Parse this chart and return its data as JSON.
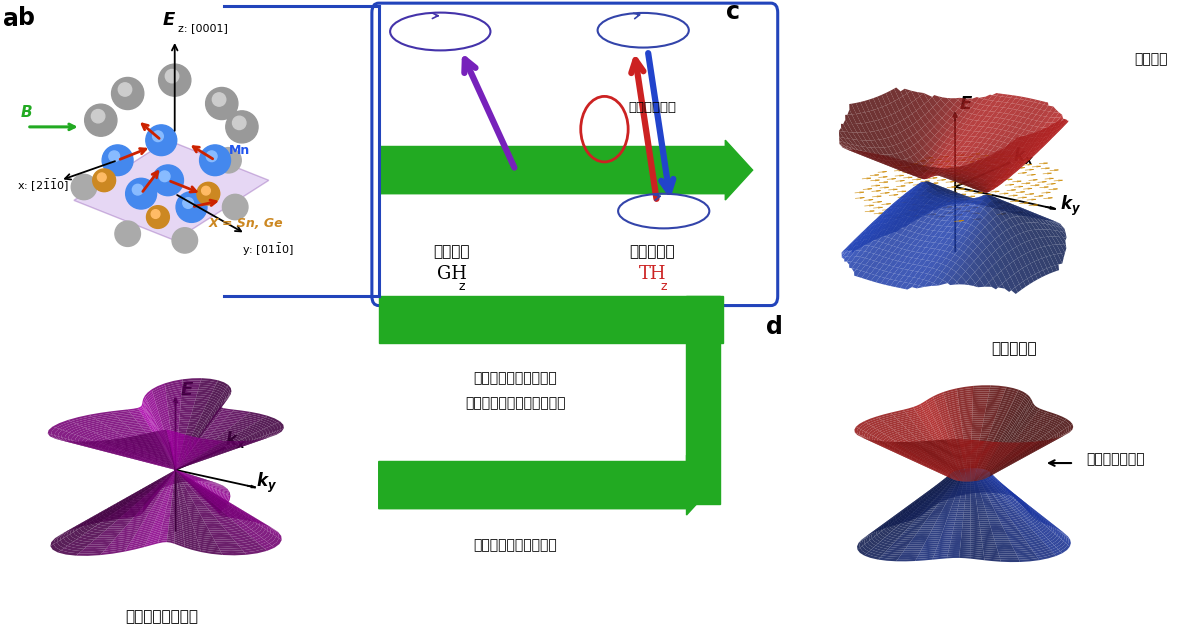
{
  "bg_color": "#ffffff",
  "panel_a_label": "a",
  "panel_b_label": "b",
  "panel_c_label": "c",
  "panel_d_label": "d",
  "label_b_axis_E": "E",
  "label_c_axis_E": "E",
  "label_c_weyl_point": "ワイル点",
  "label_c_weyl_metal": "ワイル金属",
  "label_d_nodal": "ノーダルライン",
  "label_b_bottom": "ディラックコーン",
  "arrow1_text_line1": "時間反転対称性の破れ",
  "arrow1_text_line2": "＋強いスピン軌道相互作用",
  "arrow2_text": "時間反転対称性の破れ",
  "box_ghz": "GH",
  "box_ghz_sub": "z",
  "box_thz": "TH",
  "box_thz_sub": "z",
  "box_ferro": "強磁性体",
  "box_antiferro": "反強磁性体",
  "box_exchange": "交換相互作用",
  "crystal_z": "z: [0001]",
  "crystal_x": "x: [2$\\mathbf{\\bar{1}}$$\\mathbf{\\bar{1}}$0]",
  "crystal_y": "y: [01$\\mathbf{\\bar{1}}$0]",
  "crystal_Mn": "Mn",
  "crystal_X": "X = Sn, Ge",
  "crystal_B": "B",
  "dirac_color_dark": "#9900bb",
  "dirac_color_mid": "#cc00cc",
  "dirac_color_light": "#dd44dd",
  "weyl_upper_color": "#bb2222",
  "weyl_lower_color": "#2244bb",
  "nodal_upper_color": "#cc2222",
  "nodal_lower_color": "#2244cc",
  "green_arrow_color": "#22aa22",
  "box_border_color": "#2244bb",
  "ferro_arrow_color": "#7722bb",
  "antiferro_red_color": "#cc2222",
  "antiferro_blue_color": "#2244cc"
}
